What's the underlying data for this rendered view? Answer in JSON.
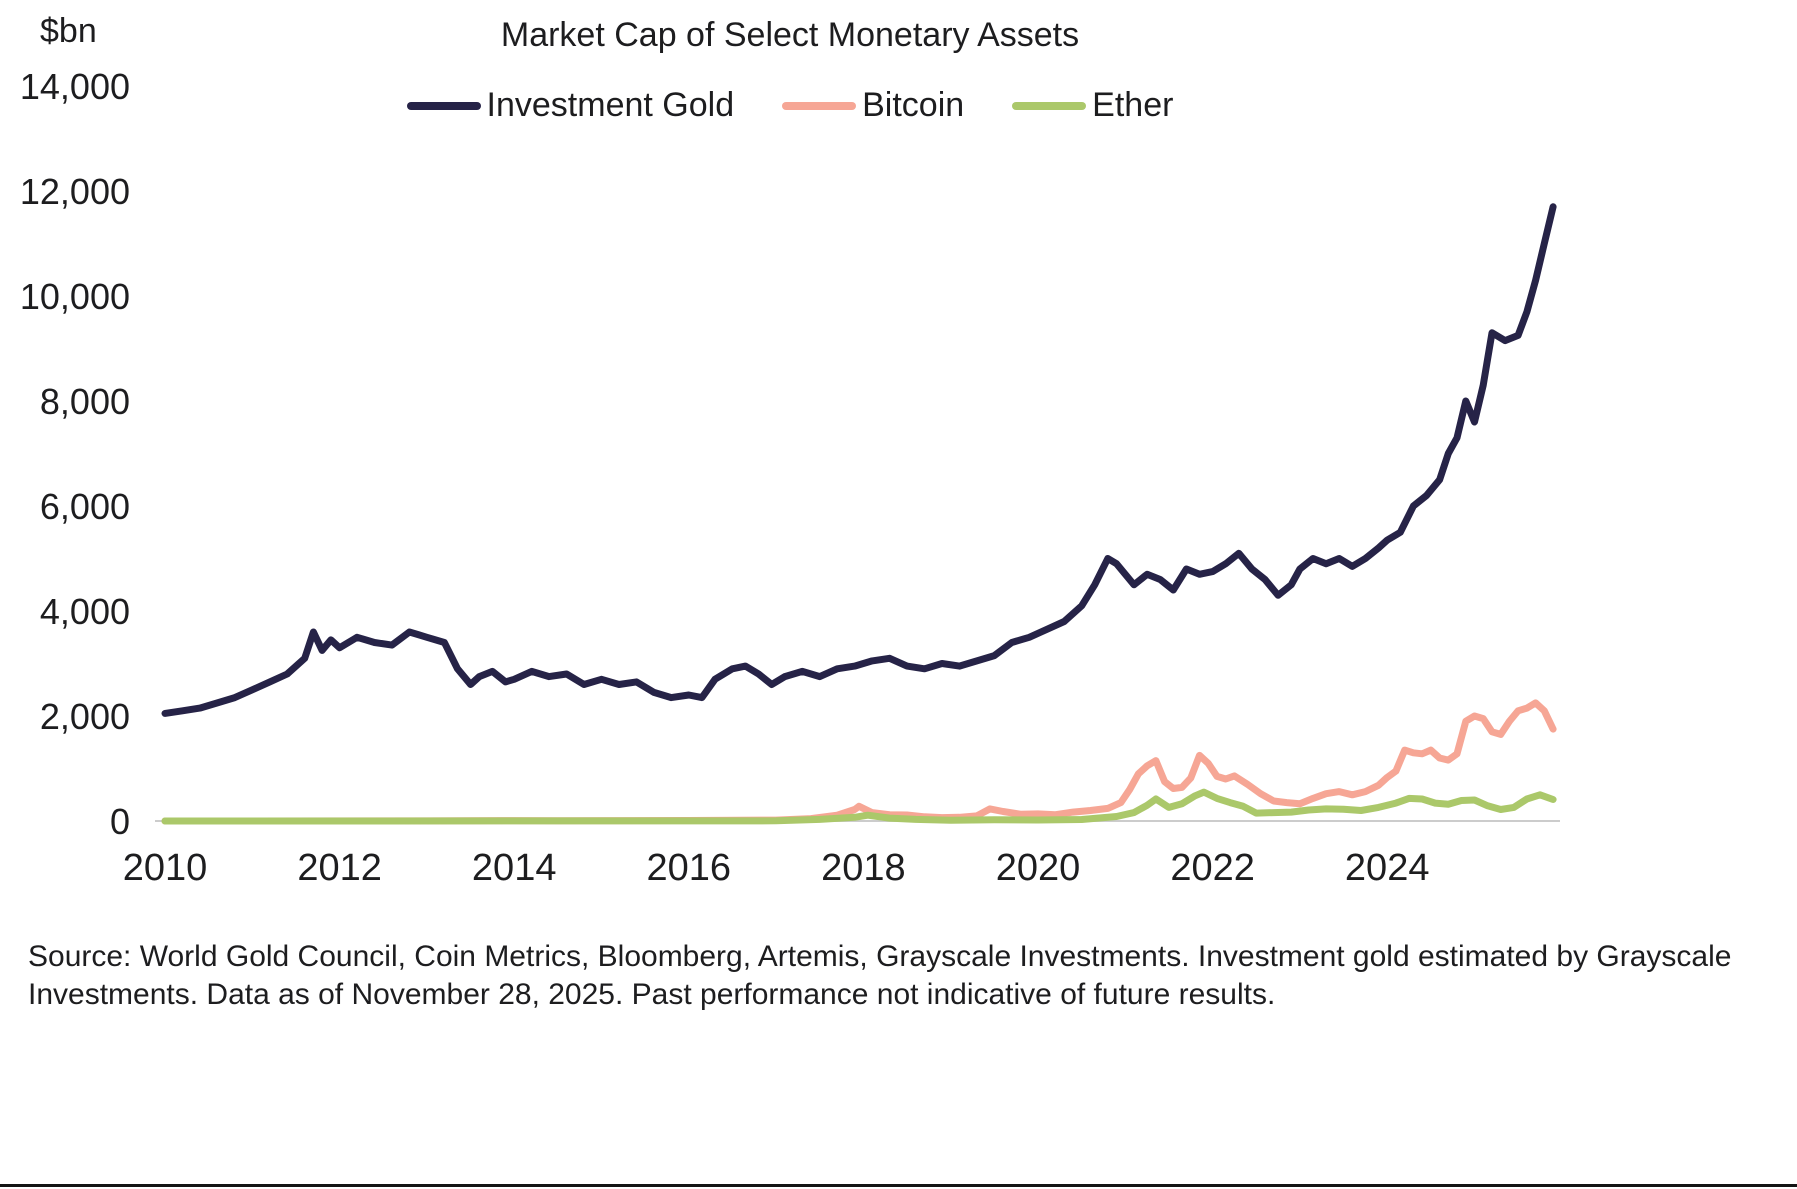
{
  "page": {
    "y_axis_unit": "$bn",
    "source_text": "Source: World Gold Council, Coin Metrics, Bloomberg, Artemis, Grayscale Investments. Investment gold estimated by Grayscale Investments. Data as of November 28, 2025. Past performance not indicative of future results."
  },
  "chart_data": {
    "type": "line",
    "title": "Market Cap of Select Monetary Assets",
    "ylabel": "$bn",
    "ylim": [
      0,
      14000
    ],
    "yticks": [
      0,
      2000,
      4000,
      6000,
      8000,
      10000,
      12000,
      14000
    ],
    "ytick_labels": [
      "0",
      "2,000",
      "4,000",
      "6,000",
      "8,000",
      "10,000",
      "12,000",
      "14,000"
    ],
    "xticks": [
      2010,
      2012,
      2014,
      2016,
      2018,
      2020,
      2022,
      2024
    ],
    "x_unit": "decimal_year",
    "x_range": [
      2010.0,
      2025.92
    ],
    "grid": false,
    "legend_position": "top",
    "series": [
      {
        "name": "Investment Gold",
        "color": "#262347",
        "x": [
          2010.0,
          2010.2,
          2010.4,
          2010.6,
          2010.8,
          2011.0,
          2011.2,
          2011.4,
          2011.6,
          2011.7,
          2011.8,
          2011.9,
          2012.0,
          2012.2,
          2012.4,
          2012.6,
          2012.8,
          2012.9,
          2013.0,
          2013.2,
          2013.35,
          2013.5,
          2013.6,
          2013.75,
          2013.9,
          2014.0,
          2014.2,
          2014.4,
          2014.6,
          2014.8,
          2015.0,
          2015.2,
          2015.4,
          2015.6,
          2015.8,
          2016.0,
          2016.15,
          2016.3,
          2016.5,
          2016.65,
          2016.8,
          2016.95,
          2017.1,
          2017.3,
          2017.5,
          2017.7,
          2017.9,
          2018.1,
          2018.3,
          2018.5,
          2018.7,
          2018.9,
          2019.1,
          2019.3,
          2019.5,
          2019.7,
          2019.9,
          2020.1,
          2020.3,
          2020.5,
          2020.65,
          2020.8,
          2020.9,
          2021.0,
          2021.1,
          2021.25,
          2021.4,
          2021.55,
          2021.7,
          2021.85,
          2022.0,
          2022.15,
          2022.3,
          2022.45,
          2022.6,
          2022.75,
          2022.9,
          2023.0,
          2023.15,
          2023.3,
          2023.45,
          2023.6,
          2023.75,
          2023.9,
          2024.0,
          2024.15,
          2024.3,
          2024.45,
          2024.6,
          2024.7,
          2024.8,
          2024.9,
          2025.0,
          2025.1,
          2025.2,
          2025.35,
          2025.5,
          2025.6,
          2025.7,
          2025.8,
          2025.9
        ],
        "values": [
          2050,
          2100,
          2150,
          2250,
          2350,
          2500,
          2650,
          2800,
          3100,
          3600,
          3250,
          3450,
          3300,
          3500,
          3400,
          3350,
          3600,
          3550,
          3500,
          3400,
          2900,
          2600,
          2750,
          2850,
          2650,
          2700,
          2850,
          2750,
          2800,
          2600,
          2700,
          2600,
          2650,
          2450,
          2350,
          2400,
          2350,
          2700,
          2900,
          2950,
          2800,
          2600,
          2750,
          2850,
          2750,
          2900,
          2950,
          3050,
          3100,
          2950,
          2900,
          3000,
          2950,
          3050,
          3150,
          3400,
          3500,
          3650,
          3800,
          4100,
          4500,
          5000,
          4900,
          4700,
          4500,
          4700,
          4600,
          4400,
          4800,
          4700,
          4750,
          4900,
          5100,
          4800,
          4600,
          4300,
          4500,
          4800,
          5000,
          4900,
          5000,
          4850,
          5000,
          5200,
          5350,
          5500,
          6000,
          6200,
          6500,
          7000,
          7300,
          8000,
          7600,
          8300,
          9300,
          9150,
          9250,
          9700,
          10300,
          11000,
          11700
        ]
      },
      {
        "name": "Bitcoin",
        "color": "#f6a695",
        "x": [
          2010.0,
          2013.0,
          2013.9,
          2014.5,
          2016.0,
          2017.0,
          2017.4,
          2017.7,
          2017.9,
          2017.95,
          2018.1,
          2018.3,
          2018.5,
          2018.7,
          2018.9,
          2019.1,
          2019.3,
          2019.45,
          2019.6,
          2019.8,
          2020.0,
          2020.2,
          2020.4,
          2020.6,
          2020.8,
          2020.95,
          2021.05,
          2021.15,
          2021.25,
          2021.35,
          2021.45,
          2021.55,
          2021.65,
          2021.75,
          2021.85,
          2021.95,
          2022.05,
          2022.15,
          2022.25,
          2022.4,
          2022.55,
          2022.7,
          2022.85,
          2023.0,
          2023.15,
          2023.3,
          2023.45,
          2023.6,
          2023.75,
          2023.9,
          2024.0,
          2024.1,
          2024.2,
          2024.3,
          2024.4,
          2024.5,
          2024.6,
          2024.7,
          2024.8,
          2024.9,
          2025.0,
          2025.1,
          2025.2,
          2025.3,
          2025.4,
          2025.5,
          2025.6,
          2025.7,
          2025.8,
          2025.9
        ],
        "values": [
          0,
          1,
          8,
          5,
          10,
          18,
          45,
          110,
          220,
          280,
          160,
          120,
          115,
          80,
          65,
          70,
          100,
          230,
          180,
          130,
          135,
          120,
          170,
          200,
          240,
          350,
          600,
          900,
          1050,
          1150,
          750,
          620,
          640,
          820,
          1250,
          1100,
          850,
          800,
          860,
          700,
          520,
          380,
          350,
          330,
          430,
          520,
          560,
          500,
          560,
          680,
          830,
          950,
          1350,
          1300,
          1280,
          1350,
          1200,
          1160,
          1280,
          1900,
          2000,
          1950,
          1700,
          1650,
          1900,
          2100,
          2150,
          2250,
          2100,
          1750
        ]
      },
      {
        "name": "Ether",
        "color": "#abc86a",
        "x": [
          2010.0,
          2016.0,
          2017.0,
          2017.5,
          2017.9,
          2018.05,
          2018.3,
          2018.6,
          2019.0,
          2019.5,
          2020.0,
          2020.5,
          2020.9,
          2021.1,
          2021.25,
          2021.35,
          2021.5,
          2021.65,
          2021.8,
          2021.9,
          2022.05,
          2022.2,
          2022.35,
          2022.5,
          2022.7,
          2022.9,
          2023.1,
          2023.3,
          2023.5,
          2023.7,
          2023.9,
          2024.1,
          2024.25,
          2024.4,
          2024.55,
          2024.7,
          2024.85,
          2025.0,
          2025.15,
          2025.3,
          2025.45,
          2025.6,
          2025.75,
          2025.9
        ],
        "values": [
          0,
          1,
          3,
          30,
          70,
          110,
          55,
          30,
          15,
          25,
          20,
          28,
          85,
          160,
          300,
          420,
          260,
          330,
          480,
          550,
          430,
          350,
          280,
          150,
          160,
          170,
          210,
          230,
          225,
          200,
          260,
          340,
          430,
          420,
          340,
          320,
          390,
          400,
          290,
          220,
          260,
          420,
          500,
          410
        ]
      }
    ]
  }
}
